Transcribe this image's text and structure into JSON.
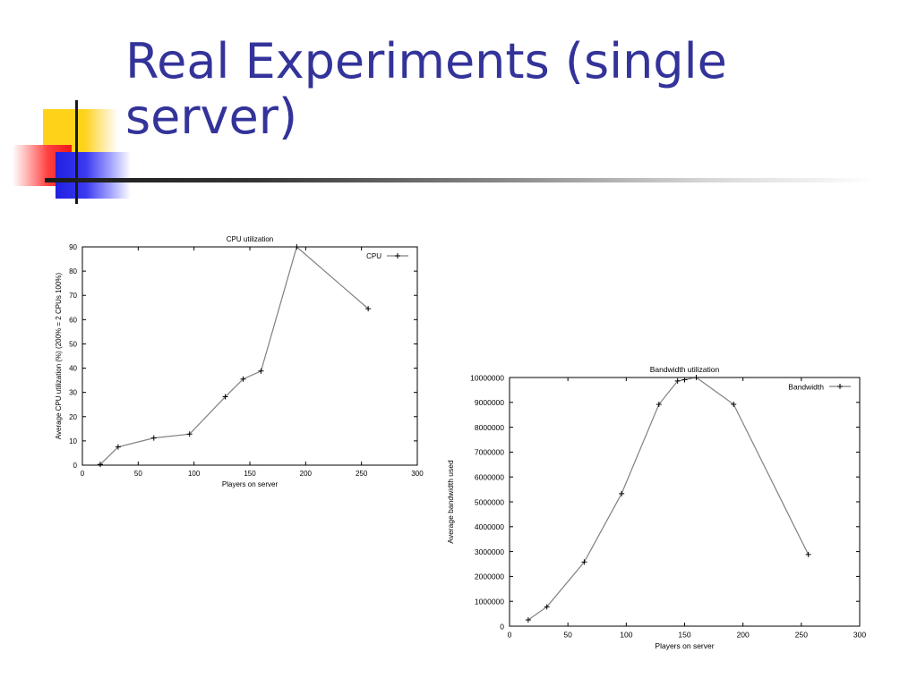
{
  "slide": {
    "title": "Real Experiments (single server)"
  },
  "chart_data": [
    {
      "type": "line",
      "title": "CPU utilization",
      "xlabel": "Players on server",
      "ylabel": "Average CPU utilization (%) (200% = 2 CPUs 100%)",
      "xlim": [
        0,
        300
      ],
      "ylim": [
        0,
        90
      ],
      "xticks": [
        0,
        50,
        100,
        150,
        200,
        250,
        300
      ],
      "yticks": [
        0,
        10,
        20,
        30,
        40,
        50,
        60,
        70,
        80,
        90
      ],
      "legend_position": "top-right",
      "grid": false,
      "series": [
        {
          "name": "CPU",
          "x": [
            16,
            32,
            64,
            96,
            128,
            144,
            160,
            192,
            256
          ],
          "y": [
            0.3,
            7.5,
            11.2,
            12.8,
            28.2,
            35.5,
            38.8,
            90,
            64.5
          ]
        }
      ]
    },
    {
      "type": "line",
      "title": "Bandwidth utilization",
      "xlabel": "Players on server",
      "ylabel": "Average bandwidth used",
      "xlim": [
        0,
        300
      ],
      "ylim": [
        0,
        10000000
      ],
      "xticks": [
        0,
        50,
        100,
        150,
        200,
        250,
        300
      ],
      "yticks": [
        0,
        1000000,
        2000000,
        3000000,
        4000000,
        5000000,
        6000000,
        7000000,
        8000000,
        9000000,
        10000000
      ],
      "legend_position": "top-right",
      "grid": false,
      "series": [
        {
          "name": "Bandwidth",
          "x": [
            16,
            32,
            64,
            96,
            128,
            144,
            150,
            160,
            192,
            256
          ],
          "y": [
            250000,
            780000,
            2580000,
            5330000,
            8920000,
            9860000,
            9910000,
            10000000,
            8920000,
            2880000
          ]
        }
      ]
    }
  ],
  "colors": {
    "title": "#33339a",
    "line": "#808080",
    "axis": "#000000"
  }
}
